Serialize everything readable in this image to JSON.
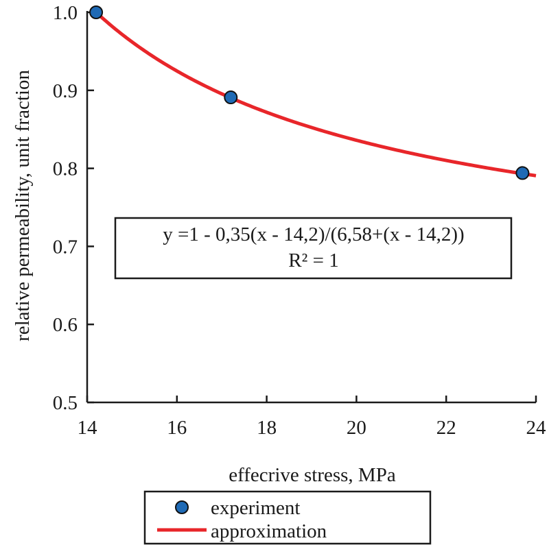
{
  "chart_data": {
    "type": "scatter",
    "title": "",
    "xlabel": "effecrive stress, MPa",
    "ylabel": "relative permeability, unit fraction",
    "xlim": [
      14,
      24
    ],
    "ylim": [
      0.5,
      1.0
    ],
    "xticks": [
      14,
      16,
      18,
      20,
      22,
      24
    ],
    "yticks": [
      0.5,
      0.6,
      0.7,
      0.8,
      0.9,
      1.0
    ],
    "xtick_labels": [
      "14",
      "16",
      "18",
      "20",
      "22",
      "24"
    ],
    "ytick_labels": [
      "0.5",
      "0.6",
      "0.7",
      "0.8",
      "0.9",
      "1.0"
    ],
    "grid": false,
    "series": [
      {
        "name": "experiment",
        "kind": "scatter",
        "x": [
          14.2,
          17.2,
          23.7
        ],
        "y": [
          1.0,
          0.891,
          0.794
        ],
        "color": "#1f6ab5"
      },
      {
        "name": "approximation",
        "kind": "line",
        "formula": {
          "a": 0.35,
          "b": 6.58,
          "x0": 14.2
        },
        "x_range": [
          14.2,
          24
        ],
        "color": "#e8262a"
      }
    ],
    "annotation": {
      "equation": "y =1 - 0,35(x - 14,2)/(6,58+(x - 14,2))",
      "r2": "R² = 1"
    },
    "legend": {
      "placement": "bottom-center",
      "items": [
        "experiment",
        "approximation"
      ]
    }
  }
}
